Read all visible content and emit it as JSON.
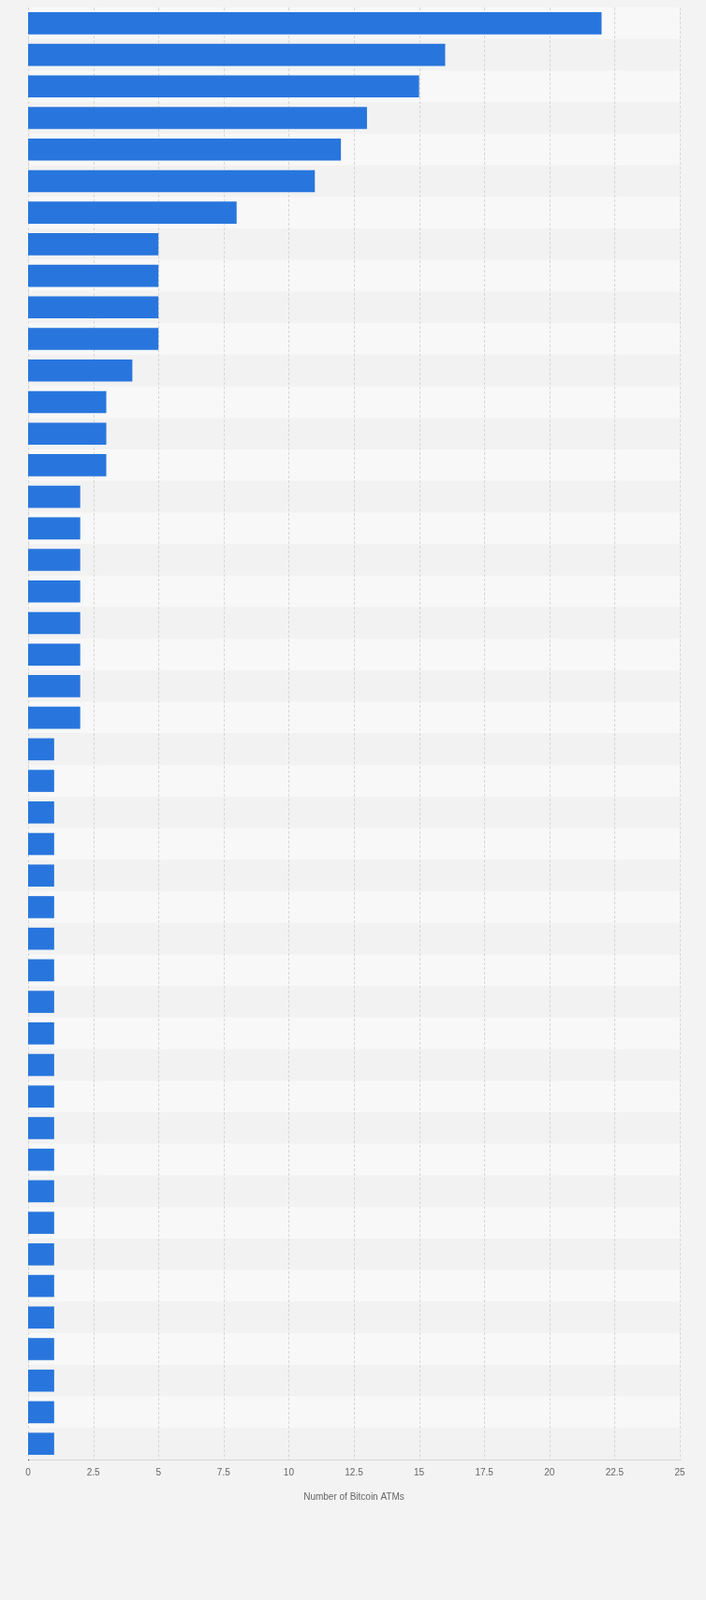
{
  "chart_data": {
    "type": "bar",
    "orientation": "horizontal",
    "x_label": "Number of Bitcoin ATMs",
    "categories": [
      null,
      null,
      null,
      null,
      null,
      null,
      null,
      null,
      null,
      null,
      null,
      null,
      null,
      null,
      null,
      null,
      null,
      null,
      null,
      null,
      null,
      null,
      null,
      null,
      null,
      null,
      null,
      null,
      null,
      null,
      null,
      null,
      null,
      null,
      null,
      null,
      null,
      null,
      null,
      null,
      null,
      null,
      null,
      null,
      null,
      null
    ],
    "values": [
      22,
      16,
      15,
      13,
      12,
      11,
      8,
      5,
      5,
      5,
      5,
      4,
      3,
      3,
      3,
      2,
      2,
      2,
      2,
      2,
      2,
      2,
      2,
      1,
      1,
      1,
      1,
      1,
      1,
      1,
      1,
      1,
      1,
      1,
      1,
      1,
      1,
      1,
      1,
      1,
      1,
      1,
      1,
      1,
      1,
      1
    ],
    "color": "#2876dd",
    "xlim": [
      0,
      25
    ],
    "xticks": [
      0,
      2.5,
      5,
      7.5,
      10,
      12.5,
      15,
      17.5,
      20,
      22.5,
      25
    ],
    "grid": true,
    "tick_labels": "x"
  }
}
